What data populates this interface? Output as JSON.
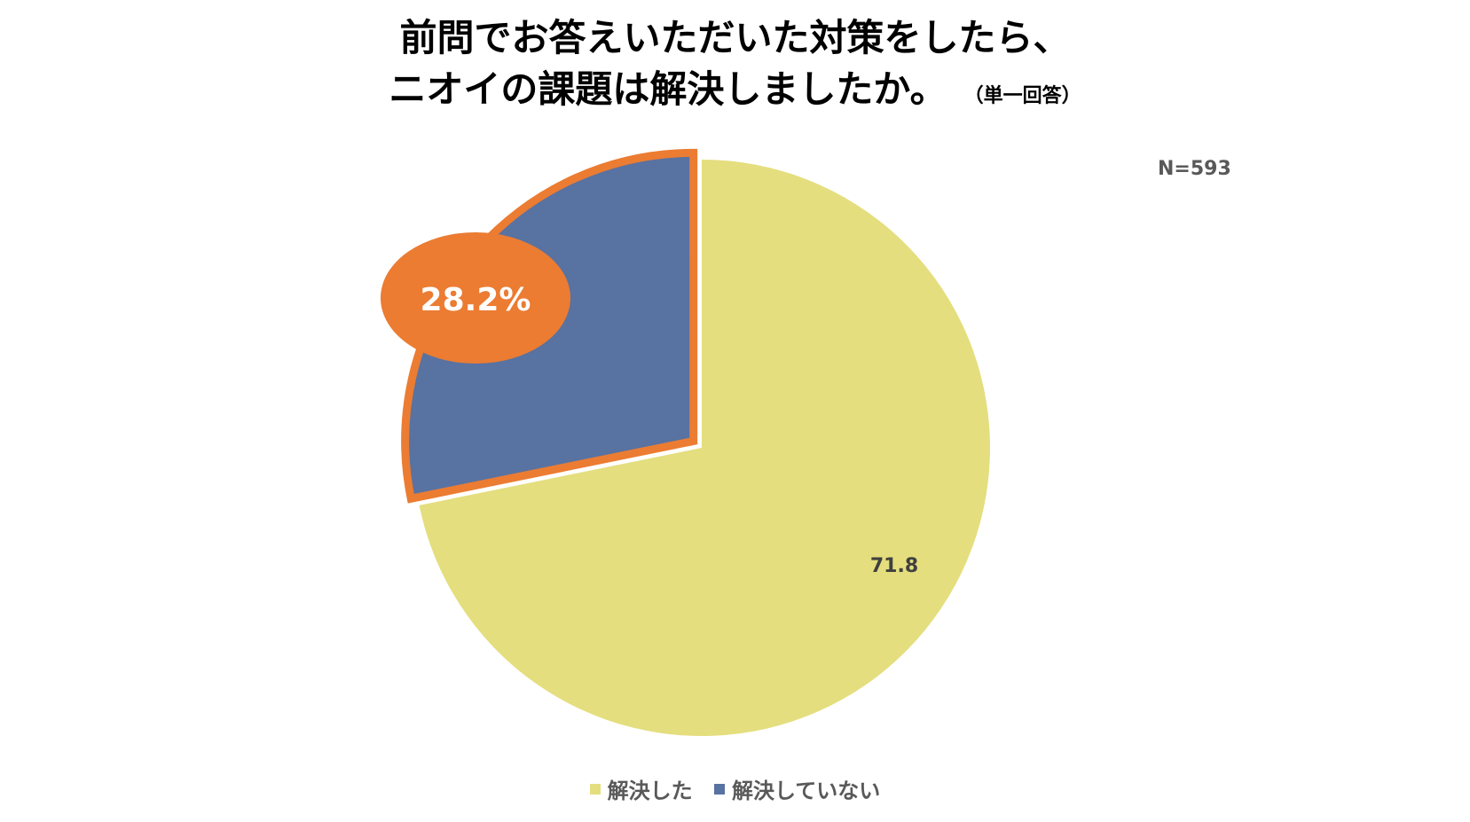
{
  "chart_data": {
    "type": "pie",
    "title_lines": [
      "前問でお答えいただいた対策をしたら、",
      "ニオイの課題は解決しましたか。"
    ],
    "title_note": "（単一回答）",
    "sample_size": "N=593",
    "series": [
      {
        "name": "解決した",
        "value": 71.8,
        "label": "71.8",
        "color": "#E4DE7E"
      },
      {
        "name": "解決していない",
        "value": 28.2,
        "label": "28.2%",
        "color": "#5872A1",
        "highlight_color": "#EB7C32"
      }
    ],
    "legend_position": "bottom"
  }
}
